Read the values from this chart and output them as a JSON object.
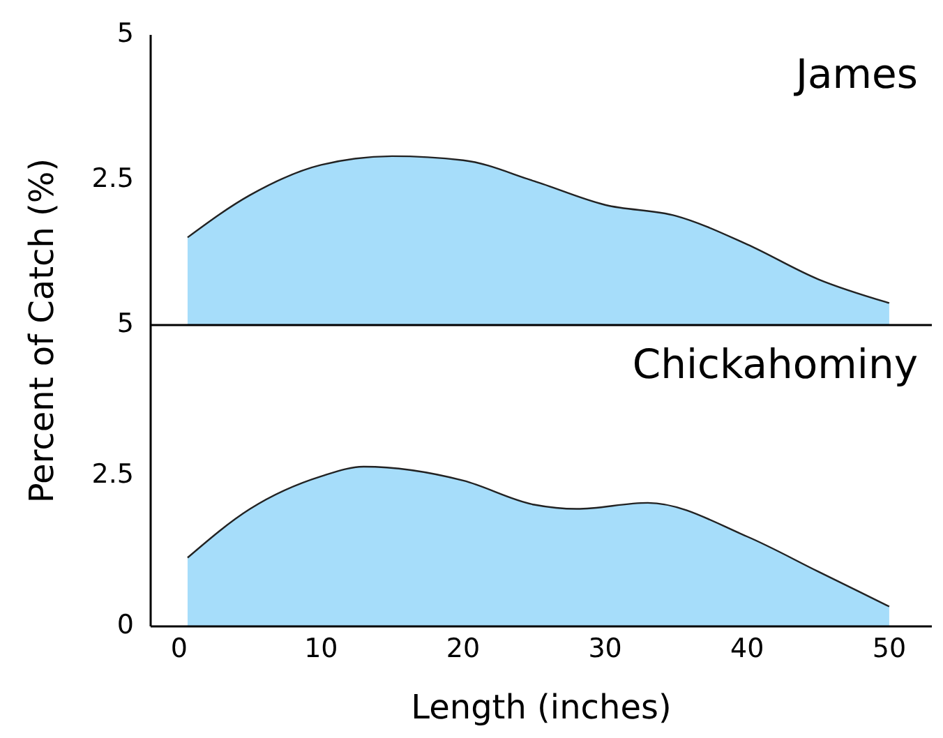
{
  "chart_data": [
    {
      "type": "area",
      "title": "James",
      "ylabel": "Percent of Catch (%)",
      "x": [
        0.6,
        5,
        10,
        15,
        20,
        25,
        30,
        35,
        40,
        45,
        50
      ],
      "xlim": [
        -2,
        53
      ],
      "ylim": [
        0,
        5
      ],
      "yticks": [
        2.5,
        5
      ],
      "tick_labels": "y",
      "series": [
        {
          "color": "#a6ddfa",
          "values": [
            1.51,
            2.24,
            2.76,
            2.91,
            2.84,
            2.48,
            2.07,
            1.88,
            1.39,
            0.79,
            0.38
          ]
        }
      ]
    },
    {
      "type": "area",
      "title": "Chickahominy",
      "xlabel": "Length (inches)",
      "x": [
        0.6,
        5,
        10,
        13,
        20,
        25,
        28,
        33,
        40,
        45,
        50
      ],
      "xlim": [
        -2,
        53
      ],
      "xticks": [
        0,
        10,
        20,
        30,
        40,
        50
      ],
      "ylim": [
        0,
        5
      ],
      "yticks": [
        0,
        2.5,
        5
      ],
      "series": [
        {
          "color": "#a6ddfa",
          "values": [
            1.14,
            1.95,
            2.49,
            2.65,
            2.42,
            2.02,
            1.95,
            2.05,
            1.49,
            0.91,
            0.33
          ]
        }
      ]
    }
  ]
}
